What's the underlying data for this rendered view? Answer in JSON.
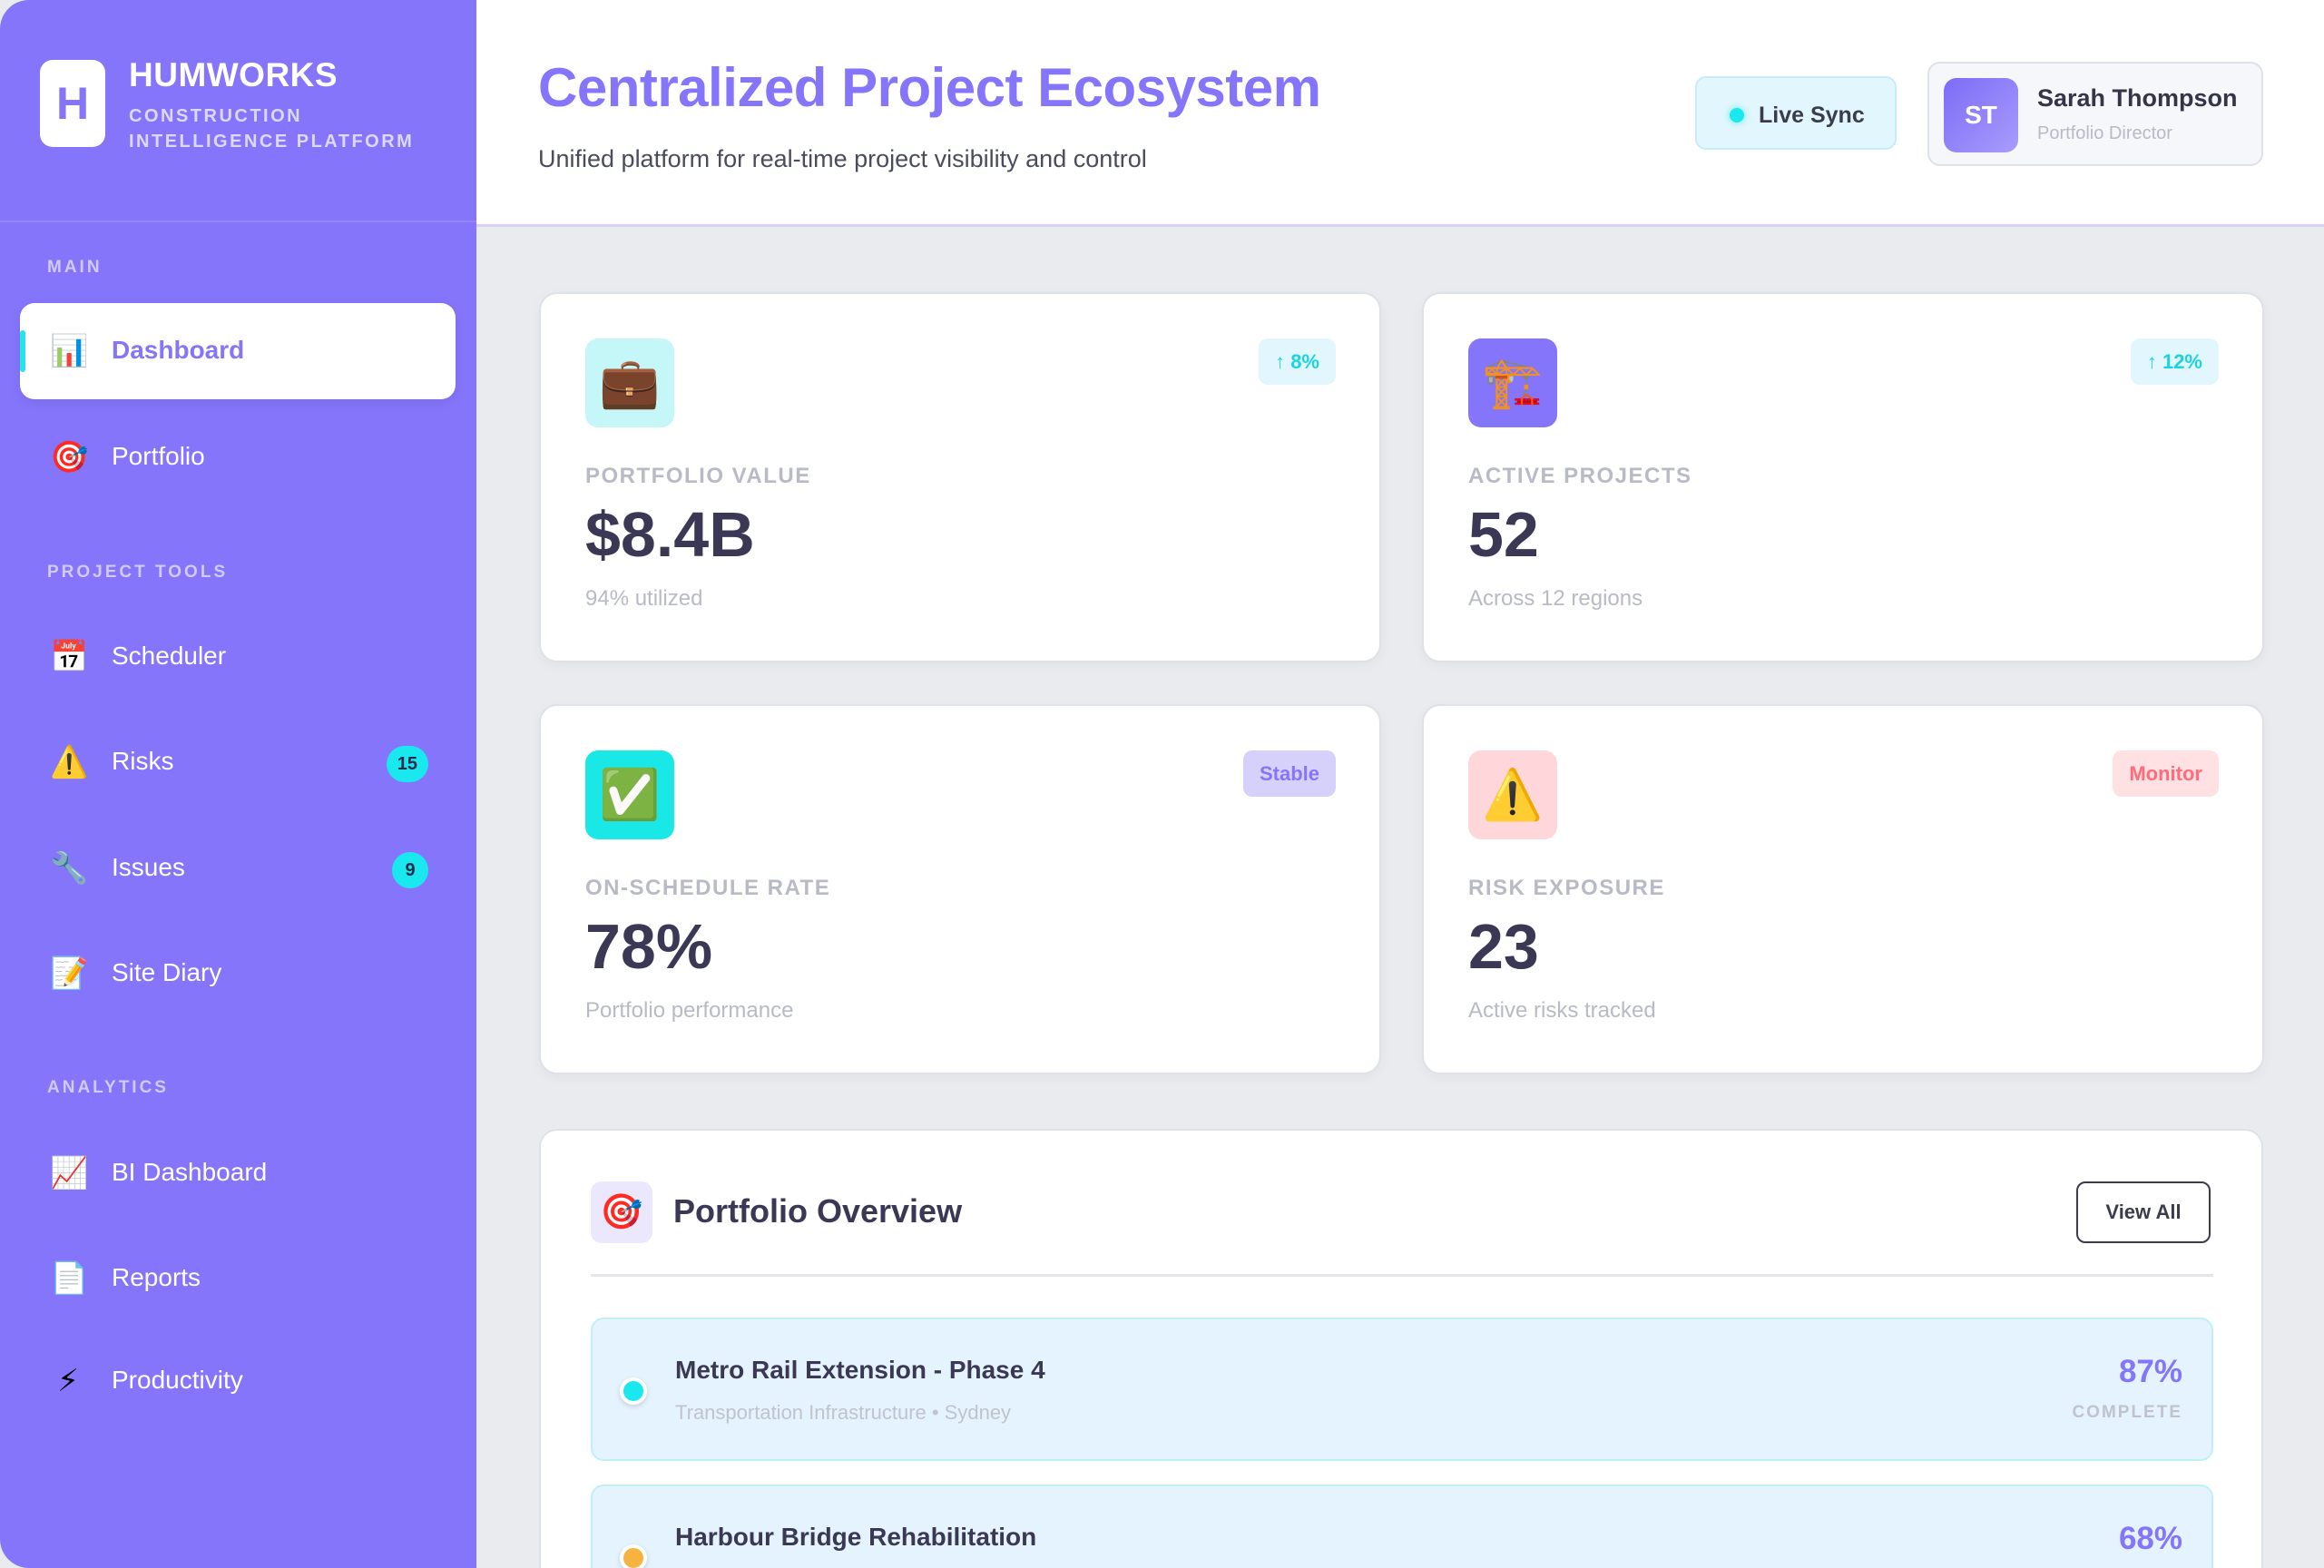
{
  "brand": {
    "logo_letter": "H",
    "name": "HUMWORKS",
    "subtitle": "CONSTRUCTION INTELLIGENCE PLATFORM"
  },
  "sidebar": {
    "sections": [
      {
        "label": "MAIN",
        "items": [
          {
            "label": "Dashboard",
            "icon": "bar-chart-icon",
            "active": true
          },
          {
            "label": "Portfolio",
            "icon": "target-icon"
          }
        ]
      },
      {
        "label": "PROJECT TOOLS",
        "items": [
          {
            "label": "Scheduler",
            "icon": "calendar-icon"
          },
          {
            "label": "Risks",
            "icon": "warning-icon",
            "badge": "15"
          },
          {
            "label": "Issues",
            "icon": "wrench-icon",
            "badge": "9"
          },
          {
            "label": "Site Diary",
            "icon": "notepad-icon"
          }
        ]
      },
      {
        "label": "ANALYTICS",
        "items": [
          {
            "label": "BI Dashboard",
            "icon": "trend-chart-icon"
          },
          {
            "label": "Reports",
            "icon": "document-icon"
          },
          {
            "label": "Productivity",
            "icon": "lightning-icon"
          }
        ]
      }
    ]
  },
  "header": {
    "title": "Centralized Project Ecosystem",
    "subtitle": "Unified platform for real-time project visibility and control",
    "sync_label": "Live Sync",
    "user": {
      "initials": "ST",
      "name": "Sarah Thompson",
      "role": "Portfolio Director"
    }
  },
  "stats": [
    {
      "icon": "briefcase-icon",
      "trend": "↑ 8%",
      "label": "PORTFOLIO VALUE",
      "value": "$8.4B",
      "sub": "94% utilized"
    },
    {
      "icon": "crane-icon",
      "trend": "↑ 12%",
      "label": "ACTIVE PROJECTS",
      "value": "52",
      "sub": "Across 12 regions"
    },
    {
      "icon": "check-icon",
      "trend": "Stable",
      "label": "ON-SCHEDULE RATE",
      "value": "78%",
      "sub": "Portfolio performance"
    },
    {
      "icon": "warning-icon",
      "trend": "Monitor",
      "label": "RISK EXPOSURE",
      "value": "23",
      "sub": "Active risks tracked"
    }
  ],
  "overview": {
    "title": "Portfolio Overview",
    "view_all": "View All",
    "projects": [
      {
        "name": "Metro Rail Extension - Phase 4",
        "meta": "Transportation Infrastructure • Sydney",
        "percent": "87%",
        "status": "COMPLETE",
        "dot_color": "#19e9ee"
      },
      {
        "name": "Harbour Bridge Rehabilitation",
        "percent": "68%",
        "dot_color": "#f7b33f"
      }
    ]
  },
  "colors": {
    "accent": "#8575fb",
    "cyan": "#19e9ee",
    "danger": "#ff6b7a"
  }
}
